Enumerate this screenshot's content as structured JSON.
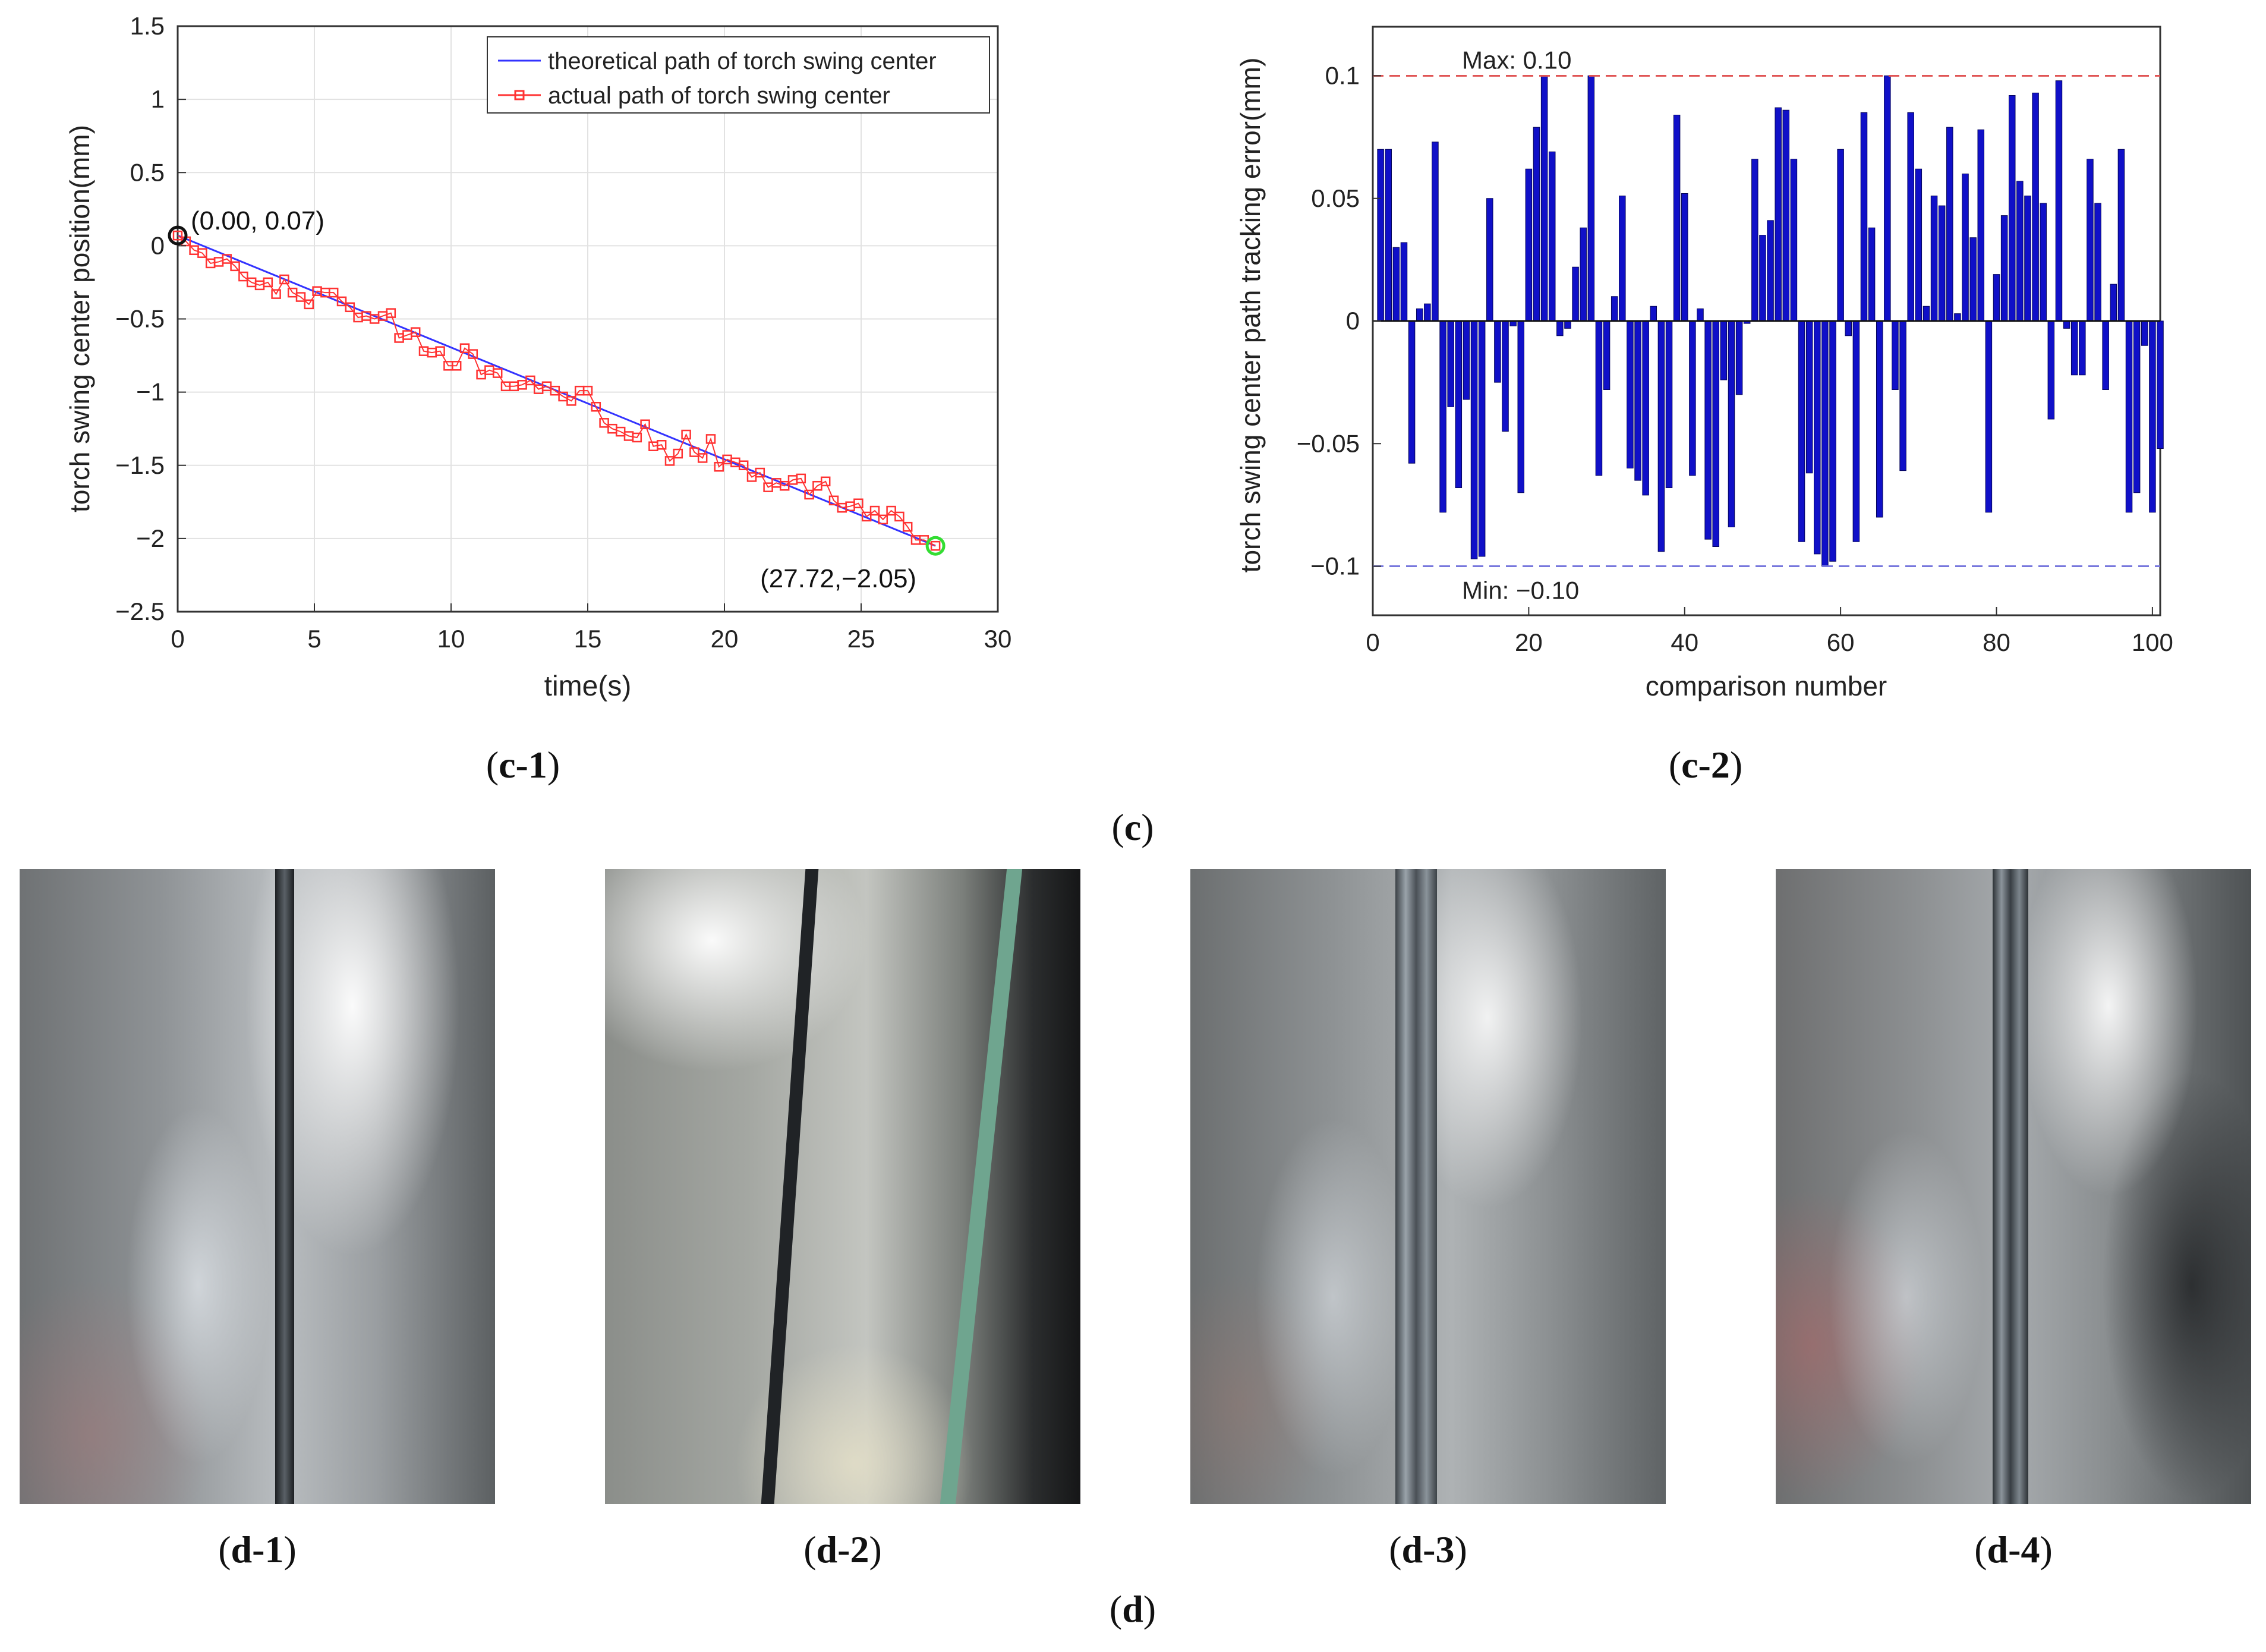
{
  "chart_data": [
    {
      "type": "line",
      "panel": "c-1",
      "xlabel": "time(s)",
      "ylabel": "torch swing center position(mm)",
      "xlim": [
        0,
        30
      ],
      "ylim": [
        -2.5,
        1.5
      ],
      "xticks": [
        0,
        5,
        10,
        15,
        20,
        25,
        30
      ],
      "yticks": [
        1.5,
        1,
        0.5,
        0,
        -0.5,
        -1,
        -1.5,
        -2,
        -2.5
      ],
      "ytick_labels": [
        "1.5",
        "1",
        "0.5",
        "0",
        "−0.5",
        "−1",
        "−1.5",
        "−2",
        "−2.5"
      ],
      "grid": true,
      "legend_position": "top-right",
      "series": [
        {
          "name": "theoretical path of torch swing center",
          "color": "#3333ff",
          "x": [
            0.0,
            27.72
          ],
          "y": [
            0.07,
            -2.05
          ]
        },
        {
          "name": "actual path of torch swing center",
          "color": "#ff3333",
          "marker": "square",
          "x": [
            0.0,
            0.3,
            0.6,
            0.9,
            1.2,
            1.5,
            1.8,
            2.1,
            2.4,
            2.7,
            3.0,
            3.3,
            3.6,
            3.9,
            4.2,
            4.5,
            4.8,
            5.1,
            5.4,
            5.7,
            6.0,
            6.3,
            6.6,
            6.9,
            7.2,
            7.5,
            7.8,
            8.1,
            8.4,
            8.7,
            9.0,
            9.3,
            9.6,
            9.9,
            10.2,
            10.5,
            10.8,
            11.1,
            11.4,
            11.7,
            12.0,
            12.3,
            12.6,
            12.9,
            13.2,
            13.5,
            13.8,
            14.1,
            14.4,
            14.7,
            15.0,
            15.3,
            15.6,
            15.9,
            16.2,
            16.5,
            16.8,
            17.1,
            17.4,
            17.7,
            18.0,
            18.3,
            18.6,
            18.9,
            19.2,
            19.5,
            19.8,
            20.1,
            20.4,
            20.7,
            21.0,
            21.3,
            21.6,
            21.9,
            22.2,
            22.5,
            22.8,
            23.1,
            23.4,
            23.7,
            24.0,
            24.3,
            24.6,
            24.9,
            25.2,
            25.5,
            25.8,
            26.1,
            26.4,
            26.7,
            27.0,
            27.3,
            27.72
          ],
          "y": [
            0.07,
            0.03,
            -0.03,
            -0.05,
            -0.12,
            -0.11,
            -0.09,
            -0.14,
            -0.21,
            -0.25,
            -0.27,
            -0.25,
            -0.33,
            -0.23,
            -0.32,
            -0.35,
            -0.4,
            -0.31,
            -0.32,
            -0.32,
            -0.38,
            -0.42,
            -0.49,
            -0.48,
            -0.5,
            -0.48,
            -0.46,
            -0.63,
            -0.61,
            -0.59,
            -0.72,
            -0.73,
            -0.72,
            -0.82,
            -0.82,
            -0.7,
            -0.74,
            -0.88,
            -0.85,
            -0.87,
            -0.96,
            -0.96,
            -0.95,
            -0.92,
            -0.98,
            -0.96,
            -0.99,
            -1.03,
            -1.06,
            -0.99,
            -0.99,
            -1.1,
            -1.21,
            -1.25,
            -1.27,
            -1.3,
            -1.31,
            -1.22,
            -1.37,
            -1.36,
            -1.47,
            -1.42,
            -1.29,
            -1.41,
            -1.45,
            -1.32,
            -1.51,
            -1.46,
            -1.48,
            -1.5,
            -1.58,
            -1.55,
            -1.65,
            -1.62,
            -1.64,
            -1.6,
            -1.59,
            -1.7,
            -1.64,
            -1.61,
            -1.74,
            -1.79,
            -1.78,
            -1.76,
            -1.85,
            -1.81,
            -1.87,
            -1.81,
            -1.85,
            -1.92,
            -2.01,
            -2.01,
            -2.05
          ]
        }
      ],
      "annotations": [
        {
          "text": "(0.00, 0.07)",
          "x": 0.0,
          "y": 0.07,
          "marker_color": "#111111"
        },
        {
          "text": "(27.72,−2.05)",
          "x": 27.72,
          "y": -2.05,
          "marker_color": "#33dd33"
        }
      ]
    },
    {
      "type": "bar",
      "panel": "c-2",
      "xlabel": "comparison number",
      "ylabel": "torch swing center path tracking error(mm)",
      "xlim": [
        0,
        101
      ],
      "ylim": [
        -0.12,
        0.12
      ],
      "xticks": [
        0,
        20,
        40,
        60,
        80,
        100
      ],
      "yticks": [
        0.1,
        0.05,
        0,
        -0.05,
        -0.1
      ],
      "ytick_labels": [
        "0.1",
        "0.05",
        "0",
        "−0.05",
        "−0.1"
      ],
      "grid": false,
      "bar_color": "#1010c8",
      "values": [
        0.07,
        0.07,
        0.03,
        0.032,
        -0.058,
        0.005,
        0.007,
        0.073,
        -0.078,
        -0.035,
        -0.068,
        -0.032,
        -0.097,
        -0.096,
        0.05,
        -0.025,
        -0.045,
        -0.002,
        -0.07,
        0.062,
        0.079,
        0.1,
        0.069,
        -0.006,
        -0.003,
        0.022,
        0.038,
        0.1,
        -0.063,
        -0.028,
        0.01,
        0.051,
        -0.06,
        -0.065,
        -0.071,
        0.006,
        -0.094,
        -0.068,
        0.084,
        0.052,
        -0.063,
        0.005,
        -0.089,
        -0.092,
        -0.024,
        -0.084,
        -0.03,
        -0.001,
        0.066,
        0.035,
        0.041,
        0.087,
        0.086,
        0.066,
        -0.09,
        -0.062,
        -0.095,
        -0.1,
        -0.098,
        0.07,
        -0.006,
        -0.09,
        0.085,
        0.038,
        -0.08,
        0.1,
        -0.028,
        -0.061,
        0.085,
        0.062,
        0.006,
        0.051,
        0.047,
        0.079,
        0.003,
        0.06,
        0.034,
        0.078,
        -0.078,
        0.019,
        0.043,
        0.092,
        0.057,
        0.051,
        0.093,
        0.048,
        -0.04,
        0.098,
        -0.003,
        -0.022,
        -0.022,
        0.066,
        0.048,
        -0.028,
        0.015,
        0.07,
        -0.078,
        -0.07,
        -0.01,
        -0.078,
        -0.052
      ],
      "reference_lines": [
        {
          "label": "Max: 0.10",
          "value": 0.1,
          "color": "#e05555"
        },
        {
          "label": "Min: −0.10",
          "value": -0.1,
          "color": "#7777dd"
        }
      ]
    }
  ],
  "captions": {
    "c1": "c-1",
    "c2": "c-2",
    "c": "c",
    "d1": "d-1",
    "d2": "d-2",
    "d3": "d-3",
    "d4": "d-4",
    "d": "d"
  }
}
